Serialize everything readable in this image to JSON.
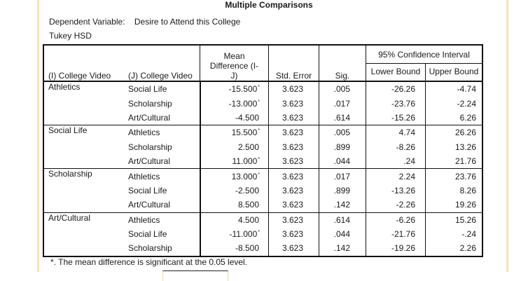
{
  "title": "Multiple Comparisons",
  "dependent_variable_label": "Dependent Variable:",
  "dependent_variable": "Desire to Attend this College",
  "method": "Tukey HSD",
  "headers": {
    "i": "(I) College Video",
    "j": "(J) College Video",
    "mean_diff_line1": "Mean",
    "mean_diff_line2": "Difference (I-",
    "mean_diff_line3": "J)",
    "std_error": "Std. Error",
    "sig": "Sig.",
    "ci": "95% Confidence Interval",
    "lower": "Lower Bound",
    "upper": "Upper Bound"
  },
  "groups": [
    {
      "i": "Athletics",
      "rows": [
        {
          "j": "Social Life",
          "mean_diff": "-15.500",
          "star": "*",
          "std_error": "3.623",
          "sig": ".005",
          "lower": "-26.26",
          "upper": "-4.74"
        },
        {
          "j": "Scholarship",
          "mean_diff": "-13.000",
          "star": "*",
          "std_error": "3.623",
          "sig": ".017",
          "lower": "-23.76",
          "upper": "-2.24"
        },
        {
          "j": "Art/Cultural",
          "mean_diff": "-4.500",
          "star": "",
          "std_error": "3.623",
          "sig": ".614",
          "lower": "-15.26",
          "upper": "6.26"
        }
      ]
    },
    {
      "i": "Social Life",
      "rows": [
        {
          "j": "Athletics",
          "mean_diff": "15.500",
          "star": "*",
          "std_error": "3.623",
          "sig": ".005",
          "lower": "4.74",
          "upper": "26.26"
        },
        {
          "j": "Scholarship",
          "mean_diff": "2.500",
          "star": "",
          "std_error": "3.623",
          "sig": ".899",
          "lower": "-8.26",
          "upper": "13.26"
        },
        {
          "j": "Art/Cultural",
          "mean_diff": "11.000",
          "star": "*",
          "std_error": "3.623",
          "sig": ".044",
          "lower": ".24",
          "upper": "21.76"
        }
      ]
    },
    {
      "i": "Scholarship",
      "rows": [
        {
          "j": "Athletics",
          "mean_diff": "13.000",
          "star": "*",
          "std_error": "3.623",
          "sig": ".017",
          "lower": "2.24",
          "upper": "23.76"
        },
        {
          "j": "Social Life",
          "mean_diff": "-2.500",
          "star": "",
          "std_error": "3.623",
          "sig": ".899",
          "lower": "-13.26",
          "upper": "8.26"
        },
        {
          "j": "Art/Cultural",
          "mean_diff": "8.500",
          "star": "",
          "std_error": "3.623",
          "sig": ".142",
          "lower": "-2.26",
          "upper": "19.26"
        }
      ]
    },
    {
      "i": "Art/Cultural",
      "rows": [
        {
          "j": "Athletics",
          "mean_diff": "4.500",
          "star": "",
          "std_error": "3.623",
          "sig": ".614",
          "lower": "-6.26",
          "upper": "15.26"
        },
        {
          "j": "Social Life",
          "mean_diff": "-11.000",
          "star": "*",
          "std_error": "3.623",
          "sig": ".044",
          "lower": "-21.76",
          "upper": "-.24"
        },
        {
          "j": "Scholarship",
          "mean_diff": "-8.500",
          "star": "",
          "std_error": "3.623",
          "sig": ".142",
          "lower": "-19.26",
          "upper": "2.26"
        }
      ]
    }
  ],
  "footnote": "*. The mean difference is significant at the 0.05 level."
}
